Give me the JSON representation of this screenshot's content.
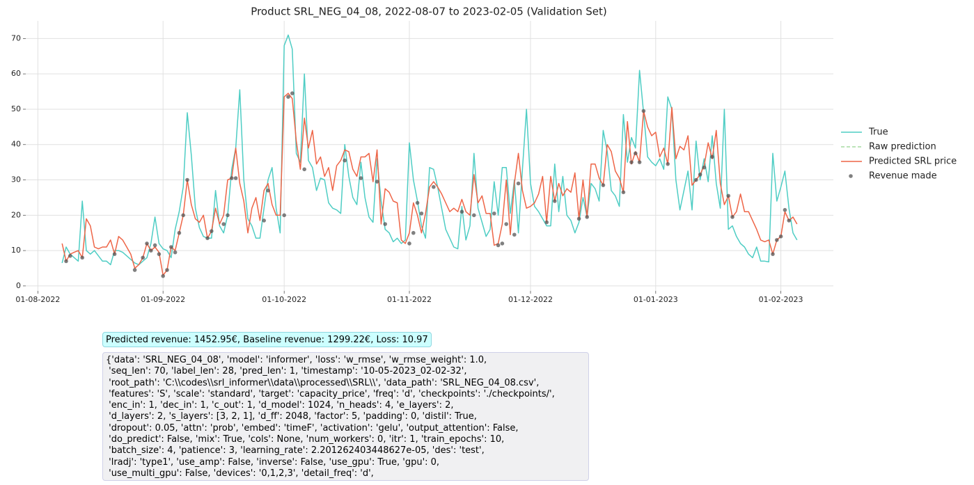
{
  "chart_data": {
    "type": "line",
    "title": "Product SRL_NEG_04_08, 2022-08-07 to 2023-02-05 (Validation Set)",
    "xlim": [
      "2022-07-29",
      "2023-02-14"
    ],
    "ylim": [
      -1.4,
      75
    ],
    "xticks": [
      {
        "value": "2022-08-01",
        "label": "01-08-2022"
      },
      {
        "value": "2022-09-01",
        "label": "01-09-2022"
      },
      {
        "value": "2022-10-01",
        "label": "01-10-2022"
      },
      {
        "value": "2022-11-01",
        "label": "01-11-2022"
      },
      {
        "value": "2022-12-01",
        "label": "01-12-2022"
      },
      {
        "value": "2023-01-01",
        "label": "01-01-2023"
      },
      {
        "value": "2023-02-01",
        "label": "01-02-2023"
      }
    ],
    "yticks": [
      0,
      10,
      20,
      30,
      40,
      50,
      60,
      70
    ],
    "grid": true,
    "legend": "right",
    "x": [
      "2022-08-07",
      "2022-08-08",
      "2022-08-09",
      "2022-08-10",
      "2022-08-11",
      "2022-08-12",
      "2022-08-13",
      "2022-08-14",
      "2022-08-15",
      "2022-08-16",
      "2022-08-17",
      "2022-08-18",
      "2022-08-19",
      "2022-08-20",
      "2022-08-21",
      "2022-08-22",
      "2022-08-23",
      "2022-08-24",
      "2022-08-25",
      "2022-08-26",
      "2022-08-27",
      "2022-08-28",
      "2022-08-29",
      "2022-08-30",
      "2022-08-31",
      "2022-09-01",
      "2022-09-02",
      "2022-09-03",
      "2022-09-04",
      "2022-09-05",
      "2022-09-06",
      "2022-09-07",
      "2022-09-08",
      "2022-09-09",
      "2022-09-10",
      "2022-09-11",
      "2022-09-12",
      "2022-09-13",
      "2022-09-14",
      "2022-09-15",
      "2022-09-16",
      "2022-09-17",
      "2022-09-18",
      "2022-09-19",
      "2022-09-20",
      "2022-09-21",
      "2022-09-22",
      "2022-09-23",
      "2022-09-24",
      "2022-09-25",
      "2022-09-26",
      "2022-09-27",
      "2022-09-28",
      "2022-09-29",
      "2022-09-30",
      "2022-10-01",
      "2022-10-02",
      "2022-10-03",
      "2022-10-04",
      "2022-10-05",
      "2022-10-06",
      "2022-10-07",
      "2022-10-08",
      "2022-10-09",
      "2022-10-10",
      "2022-10-11",
      "2022-10-12",
      "2022-10-13",
      "2022-10-14",
      "2022-10-15",
      "2022-10-16",
      "2022-10-17",
      "2022-10-18",
      "2022-10-19",
      "2022-10-20",
      "2022-10-21",
      "2022-10-22",
      "2022-10-23",
      "2022-10-24",
      "2022-10-25",
      "2022-10-26",
      "2022-10-27",
      "2022-10-28",
      "2022-10-29",
      "2022-10-30",
      "2022-10-31",
      "2022-11-01",
      "2022-11-02",
      "2022-11-03",
      "2022-11-04",
      "2022-11-05",
      "2022-11-06",
      "2022-11-07",
      "2022-11-08",
      "2022-11-09",
      "2022-11-10",
      "2022-11-11",
      "2022-11-12",
      "2022-11-13",
      "2022-11-14",
      "2022-11-15",
      "2022-11-16",
      "2022-11-17",
      "2022-11-18",
      "2022-11-19",
      "2022-11-20",
      "2022-11-21",
      "2022-11-22",
      "2022-11-23",
      "2022-11-24",
      "2022-11-25",
      "2022-11-26",
      "2022-11-27",
      "2022-11-28",
      "2022-11-29",
      "2022-11-30",
      "2022-12-01",
      "2022-12-02",
      "2022-12-03",
      "2022-12-04",
      "2022-12-05",
      "2022-12-06",
      "2022-12-07",
      "2022-12-08",
      "2022-12-09",
      "2022-12-10",
      "2022-12-11",
      "2022-12-12",
      "2022-12-13",
      "2022-12-14",
      "2022-12-15",
      "2022-12-16",
      "2022-12-17",
      "2022-12-18",
      "2022-12-19",
      "2022-12-20",
      "2022-12-21",
      "2022-12-22",
      "2022-12-23",
      "2022-12-24",
      "2022-12-25",
      "2022-12-26",
      "2022-12-27",
      "2022-12-28",
      "2022-12-29",
      "2022-12-30",
      "2022-12-31",
      "2023-01-01",
      "2023-01-02",
      "2023-01-03",
      "2023-01-04",
      "2023-01-05",
      "2023-01-06",
      "2023-01-07",
      "2023-01-08",
      "2023-01-09",
      "2023-01-10",
      "2023-01-11",
      "2023-01-12",
      "2023-01-13",
      "2023-01-14",
      "2023-01-15",
      "2023-01-16",
      "2023-01-17",
      "2023-01-18",
      "2023-01-19",
      "2023-01-20",
      "2023-01-21",
      "2023-01-22",
      "2023-01-23",
      "2023-01-24",
      "2023-01-25",
      "2023-01-26",
      "2023-01-27",
      "2023-01-28",
      "2023-01-29",
      "2023-01-30",
      "2023-01-31",
      "2023-02-01",
      "2023-02-02",
      "2023-02-03",
      "2023-02-04",
      "2023-02-05"
    ],
    "series": [
      {
        "name": "True",
        "color": "#4ecdc4",
        "style": "solid",
        "values": [
          6.5,
          11,
          9,
          8,
          7,
          24,
          10,
          9,
          10,
          8.5,
          7,
          7,
          6,
          10,
          10,
          9.5,
          8.5,
          7.5,
          6.5,
          6,
          7,
          8,
          12,
          19.5,
          12,
          10.5,
          10,
          8,
          16,
          21,
          28,
          49,
          37,
          22,
          16.5,
          14,
          13.5,
          13.5,
          27,
          17,
          15,
          20,
          33,
          39,
          55.5,
          30,
          19,
          17,
          13.5,
          13.5,
          22,
          30,
          33.5,
          22,
          15,
          68,
          71,
          67,
          37.5,
          35,
          60,
          35.5,
          33.5,
          27,
          30.5,
          30,
          23.5,
          22,
          21.5,
          20.5,
          40,
          31,
          25,
          23,
          35,
          25,
          19.5,
          18,
          36,
          24,
          16,
          15,
          12.5,
          13.5,
          12,
          13,
          40.5,
          30,
          24,
          17,
          13.5,
          33.5,
          33,
          28,
          22,
          16,
          13.5,
          11,
          10.5,
          22.5,
          13,
          17,
          37.5,
          22,
          18,
          14,
          16,
          29.5,
          20,
          33.5,
          33.5,
          20.5,
          30,
          15,
          33,
          50,
          29,
          22.5,
          21,
          19,
          17,
          17,
          34.5,
          21,
          31,
          20,
          18.5,
          15,
          18,
          25,
          19.5,
          29,
          27.5,
          24,
          44,
          38,
          27,
          25.5,
          22.5,
          48.5,
          35,
          42,
          39,
          61,
          49,
          36.5,
          35,
          34,
          36,
          33,
          53.5,
          50,
          30,
          21.5,
          27,
          32.5,
          21.5,
          41,
          30,
          36,
          29.5,
          42.5,
          29,
          22,
          50,
          16,
          17,
          14,
          12,
          11,
          9,
          8,
          11,
          7,
          7,
          6.8,
          37.5,
          24,
          28,
          32.5,
          22,
          15,
          13
        ]
      },
      {
        "name": "Raw prediction",
        "color": "#a6dba0",
        "style": "dashed"
      },
      {
        "name": "Predicted SRL price",
        "color": "#ee6547",
        "style": "solid",
        "values": [
          12,
          7,
          9,
          9.5,
          10,
          8,
          19,
          17,
          11,
          10.5,
          11,
          11,
          13,
          9,
          14,
          13,
          11,
          9,
          5,
          6,
          8,
          12,
          10,
          11,
          9.5,
          3,
          4.5,
          11,
          10,
          15,
          20,
          30,
          23,
          19,
          18,
          20,
          13.5,
          15.5,
          22,
          17.5,
          20,
          30,
          30.5,
          39,
          29,
          24,
          15,
          22,
          25,
          18.5,
          27,
          29,
          23,
          20,
          20,
          53.5,
          54.5,
          53,
          41,
          33,
          47.5,
          39,
          44,
          34.5,
          36.5,
          31,
          33.5,
          27,
          34,
          35.5,
          38.5,
          38,
          33,
          31,
          36.5,
          36.5,
          37.5,
          29.5,
          38.5,
          17.5,
          27.5,
          26.5,
          24,
          23.5,
          13,
          12,
          15,
          23.5,
          20,
          15,
          20.5,
          28,
          29.5,
          28,
          26,
          23.5,
          21,
          22,
          21,
          24.5,
          21,
          20,
          31.5,
          23.5,
          25.5,
          20.5,
          20.5,
          11.5,
          12,
          17.5,
          30,
          14.5,
          29,
          37.5,
          27,
          22,
          22.5,
          23.5,
          26,
          31,
          18,
          31,
          24,
          29,
          25.5,
          27.5,
          26.5,
          32,
          19,
          30,
          19.5,
          34.5,
          34.5,
          30.5,
          28.5,
          40,
          38,
          32.5,
          30.5,
          26.5,
          46.5,
          34.5,
          38,
          35,
          49.5,
          45,
          42.5,
          43.5,
          36.5,
          39,
          34.5,
          50.5,
          36,
          39.5,
          38.5,
          42.5,
          28.5,
          30,
          31.5,
          34,
          40.5,
          36,
          44,
          29,
          23,
          25.5,
          19.5,
          21,
          26,
          21,
          21,
          18.5,
          16,
          13,
          12.5,
          13,
          9,
          13,
          14,
          21,
          18.5,
          19.5,
          17.5
        ]
      },
      {
        "name": "Revenue made",
        "color": "#555555",
        "style": "markers",
        "x": [
          "2022-08-08",
          "2022-08-09",
          "2022-08-12",
          "2022-08-20",
          "2022-08-25",
          "2022-08-27",
          "2022-08-28",
          "2022-08-29",
          "2022-08-30",
          "2022-08-31",
          "2022-09-01",
          "2022-09-02",
          "2022-09-03",
          "2022-09-04",
          "2022-09-05",
          "2022-09-06",
          "2022-09-07",
          "2022-09-12",
          "2022-09-13",
          "2022-09-16",
          "2022-09-17",
          "2022-09-18",
          "2022-09-19",
          "2022-09-26",
          "2022-09-27",
          "2022-10-01",
          "2022-10-02",
          "2022-10-03",
          "2022-10-06",
          "2022-10-16",
          "2022-10-20",
          "2022-10-24",
          "2022-10-26",
          "2022-11-01",
          "2022-11-02",
          "2022-11-03",
          "2022-11-04",
          "2022-11-07",
          "2022-11-14",
          "2022-11-17",
          "2022-11-22",
          "2022-11-23",
          "2022-11-24",
          "2022-11-25",
          "2022-11-27",
          "2022-11-28",
          "2022-12-05",
          "2022-12-07",
          "2022-12-13",
          "2022-12-15",
          "2022-12-19",
          "2022-12-24",
          "2022-12-26",
          "2022-12-27",
          "2022-12-28",
          "2022-12-29",
          "2023-01-04",
          "2023-01-11",
          "2023-01-12",
          "2023-01-13",
          "2023-01-15",
          "2023-01-19",
          "2023-01-20",
          "2023-01-30",
          "2023-01-31",
          "2023-02-01",
          "2023-02-02",
          "2023-02-03"
        ],
        "values": [
          7,
          8.5,
          8,
          9,
          4.5,
          8,
          12,
          10,
          11.5,
          9,
          2.8,
          4.5,
          11,
          9.5,
          15,
          20,
          30,
          13.5,
          15.5,
          17.5,
          20,
          30.5,
          30.5,
          18.5,
          27,
          20,
          53.5,
          54.5,
          33,
          35.5,
          30.5,
          29.5,
          17.5,
          12,
          15,
          23.5,
          20.5,
          28,
          21,
          20,
          20.5,
          11.5,
          12,
          17.5,
          14.5,
          29,
          18,
          24,
          19,
          19.5,
          28.5,
          26.5,
          35,
          37.5,
          35,
          49.5,
          34.5,
          30,
          31.5,
          33.5,
          36.5,
          25.5,
          19.5,
          9,
          13,
          14,
          21.5,
          18.5
        ]
      }
    ]
  },
  "summary": "Predicted revenue: 1452.95€, Baseline revenue: 1299.22€, Loss: 10.97",
  "config_lines": [
    "{'data': 'SRL_NEG_04_08', 'model': 'informer', 'loss': 'w_rmse', 'w_rmse_weight': 1.0,",
    " 'seq_len': 70, 'label_len': 28, 'pred_len': 1, 'timestamp': '10-05-2023_02-02-32',",
    " 'root_path': 'C:\\\\codes\\\\srl_informer\\\\data\\\\processed\\\\SRL\\\\', 'data_path': 'SRL_NEG_04_08.csv',",
    " 'features': 'S', 'scale': 'standard', 'target': 'capacity_price', 'freq': 'd', 'checkpoints': './checkpoints/',",
    " 'enc_in': 1, 'dec_in': 1, 'c_out': 1, 'd_model': 1024, 'n_heads': 4, 'e_layers': 2,",
    " 'd_layers': 2, 's_layers': [3, 2, 1], 'd_ff': 2048, 'factor': 5, 'padding': 0, 'distil': True,",
    " 'dropout': 0.05, 'attn': 'prob', 'embed': 'timeF', 'activation': 'gelu', 'output_attention': False,",
    " 'do_predict': False, 'mix': True, 'cols': None, 'num_workers': 0, 'itr': 1, 'train_epochs': 10,",
    " 'batch_size': 4, 'patience': 3, 'learning_rate': 2.201262403448627e-05, 'des': 'test',",
    " 'lradj': 'type1', 'use_amp': False, 'inverse': False, 'use_gpu': True, 'gpu': 0,",
    " 'use_multi_gpu': False, 'devices': '0,1,2,3', 'detail_freq': 'd',"
  ]
}
